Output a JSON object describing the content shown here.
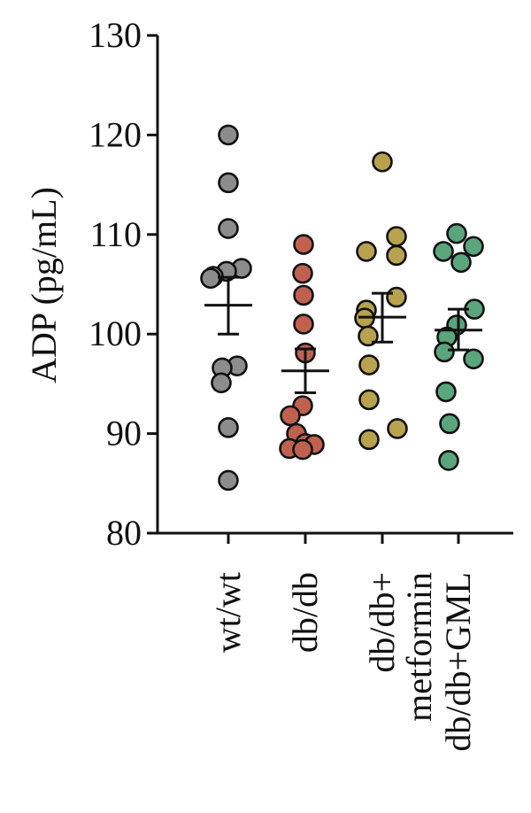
{
  "chart_data": {
    "type": "scatter",
    "ylabel": "ADP (pg/mL)",
    "ylim": [
      80,
      130
    ],
    "yticks": [
      80,
      90,
      100,
      110,
      120,
      130
    ],
    "categories": [
      {
        "lines": [
          "wt/wt"
        ]
      },
      {
        "lines": [
          "db/db"
        ]
      },
      {
        "lines": [
          "db/db+",
          "metformin"
        ]
      },
      {
        "lines": [
          "db/db+GML"
        ]
      }
    ],
    "series": [
      {
        "color": "#8c8c8c",
        "values": [
          120.0,
          115.2,
          110.6,
          106.6,
          106.3,
          105.8,
          105.6,
          96.8,
          96.6,
          95.1,
          90.6,
          85.3
        ],
        "mean": 102.9,
        "sem_low": 100.0,
        "sem_high": 105.7
      },
      {
        "color": "#c0614f",
        "values": [
          109.0,
          106.1,
          103.9,
          101.0,
          98.1,
          92.8,
          91.8,
          90.0,
          89.0,
          88.9,
          88.5,
          88.4
        ],
        "mean": 96.3,
        "sem_low": 94.1,
        "sem_high": 98.5
      },
      {
        "color": "#b8a24e",
        "values": [
          117.3,
          109.8,
          108.3,
          107.9,
          103.7,
          102.4,
          101.6,
          99.8,
          96.9,
          93.4,
          90.5,
          89.4
        ],
        "mean": 101.7,
        "sem_low": 99.2,
        "sem_high": 104.1
      },
      {
        "color": "#5aa57b",
        "values": [
          110.1,
          108.8,
          108.3,
          107.2,
          102.5,
          100.9,
          99.7,
          98.2,
          97.5,
          94.2,
          91.0,
          87.3
        ],
        "mean": 100.4,
        "sem_low": 98.4,
        "sem_high": 102.5
      }
    ]
  }
}
